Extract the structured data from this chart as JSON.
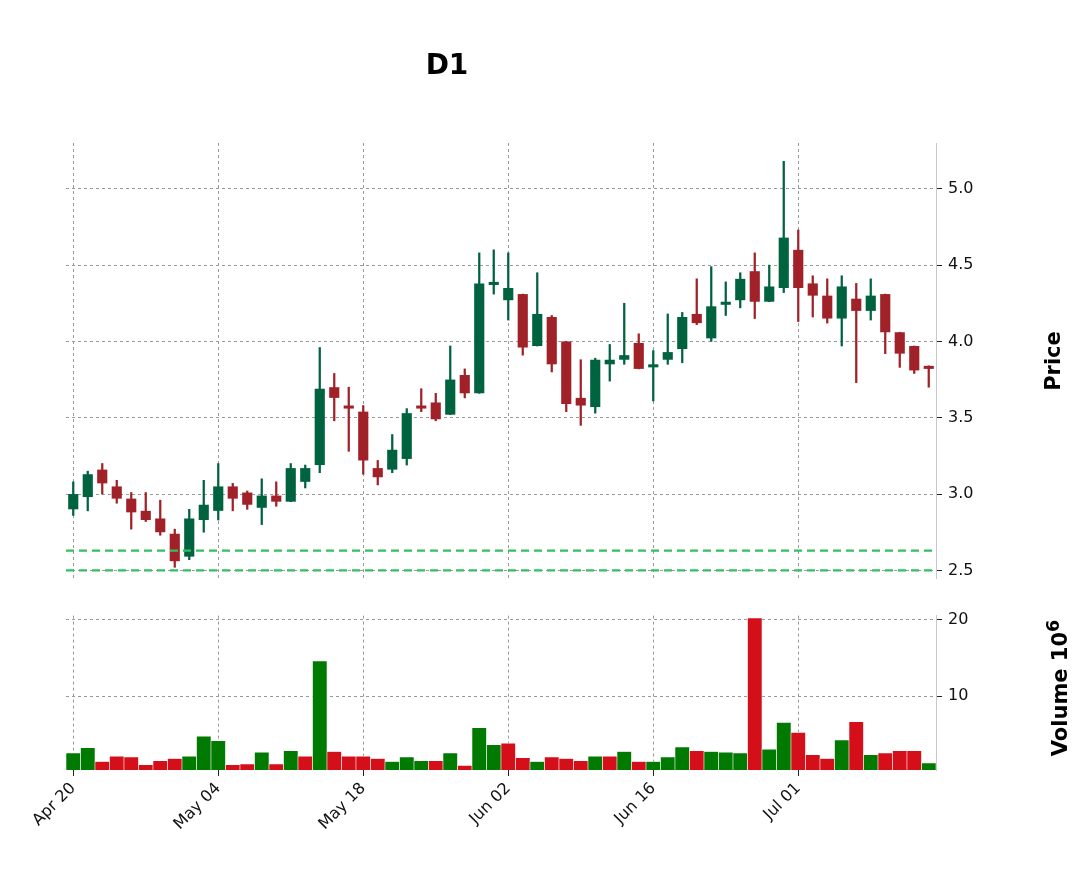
{
  "chart_data": [
    {
      "type": "candlestick",
      "title": "D1",
      "ylabel": "Price",
      "categories": [
        null,
        null,
        null,
        null,
        null,
        null,
        null,
        null,
        null,
        null,
        null,
        null,
        null,
        null,
        null,
        null,
        null,
        null,
        null,
        null,
        null,
        null,
        null,
        null,
        null,
        null,
        null,
        null,
        null,
        null,
        null,
        null,
        null,
        null,
        null,
        null,
        null,
        null,
        null,
        null,
        null,
        null,
        null,
        null,
        null,
        null,
        null,
        null,
        null,
        null,
        null,
        null,
        null,
        null,
        null,
        null,
        null,
        null,
        null,
        null
      ],
      "ohlc": [
        [
          2.9,
          3.08,
          2.86,
          3.0
        ],
        [
          2.98,
          3.15,
          2.89,
          3.13
        ],
        [
          3.16,
          3.2,
          3.0,
          3.07
        ],
        [
          3.05,
          3.09,
          2.94,
          2.97
        ],
        [
          2.97,
          3.01,
          2.77,
          2.88
        ],
        [
          2.89,
          3.01,
          2.82,
          2.83
        ],
        [
          2.84,
          2.96,
          2.73,
          2.75
        ],
        [
          2.74,
          2.77,
          2.52,
          2.56
        ],
        [
          2.59,
          2.9,
          2.57,
          2.84
        ],
        [
          2.83,
          3.09,
          2.75,
          2.93
        ],
        [
          2.89,
          3.2,
          2.83,
          3.05
        ],
        [
          3.05,
          3.07,
          2.89,
          2.97
        ],
        [
          3.01,
          3.02,
          2.9,
          2.93
        ],
        [
          2.91,
          3.1,
          2.8,
          2.99
        ],
        [
          2.99,
          3.08,
          2.92,
          2.95
        ],
        [
          2.95,
          3.2,
          2.95,
          3.17
        ],
        [
          3.08,
          3.19,
          3.04,
          3.17
        ],
        [
          3.19,
          3.96,
          3.14,
          3.69
        ],
        [
          3.7,
          3.79,
          3.48,
          3.63
        ],
        [
          3.58,
          3.7,
          3.28,
          3.56
        ],
        [
          3.54,
          3.58,
          3.13,
          3.22
        ],
        [
          3.17,
          3.22,
          3.06,
          3.11
        ],
        [
          3.16,
          3.39,
          3.14,
          3.29
        ],
        [
          3.23,
          3.56,
          3.19,
          3.53
        ],
        [
          3.58,
          3.69,
          3.54,
          3.56
        ],
        [
          3.6,
          3.66,
          3.48,
          3.49
        ],
        [
          3.52,
          3.97,
          3.52,
          3.75
        ],
        [
          3.78,
          3.82,
          3.63,
          3.66
        ],
        [
          3.66,
          4.58,
          3.66,
          4.38
        ],
        [
          4.37,
          4.6,
          4.31,
          4.39
        ],
        [
          4.27,
          4.58,
          4.14,
          4.35
        ],
        [
          4.31,
          4.31,
          3.91,
          3.96
        ],
        [
          3.97,
          4.45,
          3.97,
          4.18
        ],
        [
          4.16,
          4.17,
          3.8,
          3.85
        ],
        [
          4.0,
          4.0,
          3.54,
          3.59
        ],
        [
          3.63,
          3.88,
          3.45,
          3.58
        ],
        [
          3.57,
          3.89,
          3.53,
          3.88
        ],
        [
          3.85,
          3.98,
          3.74,
          3.88
        ],
        [
          3.88,
          4.25,
          3.85,
          3.91
        ],
        [
          3.99,
          4.05,
          3.82,
          3.82
        ],
        [
          3.83,
          3.94,
          3.61,
          3.85
        ],
        [
          3.88,
          4.18,
          3.85,
          3.93
        ],
        [
          3.95,
          4.19,
          3.86,
          4.16
        ],
        [
          4.18,
          4.41,
          4.11,
          4.12
        ],
        [
          4.02,
          4.49,
          4.0,
          4.23
        ],
        [
          4.24,
          4.39,
          4.17,
          4.26
        ],
        [
          4.27,
          4.45,
          4.22,
          4.41
        ],
        [
          4.46,
          4.58,
          4.15,
          4.26
        ],
        [
          4.26,
          4.5,
          4.26,
          4.36
        ],
        [
          4.35,
          5.18,
          4.32,
          4.68
        ],
        [
          4.6,
          4.73,
          4.13,
          4.35
        ],
        [
          4.38,
          4.43,
          4.16,
          4.3
        ],
        [
          4.3,
          4.41,
          4.12,
          4.15
        ],
        [
          4.15,
          4.43,
          3.97,
          4.36
        ],
        [
          4.28,
          4.38,
          3.73,
          4.2
        ],
        [
          4.2,
          4.41,
          4.14,
          4.3
        ],
        [
          4.31,
          4.31,
          3.92,
          4.06
        ],
        [
          4.06,
          4.06,
          3.83,
          3.92
        ],
        [
          3.97,
          3.97,
          3.79,
          3.81
        ],
        [
          3.84,
          3.84,
          3.7,
          3.82
        ]
      ],
      "colors": [
        "#006340",
        "#006340",
        "#a02128",
        "#a02128",
        "#a02128",
        "#a02128",
        "#a02128",
        "#a02128",
        "#006340",
        "#006340",
        "#006340",
        "#a02128",
        "#a02128",
        "#006340",
        "#a02128",
        "#006340",
        "#006340",
        "#006340",
        "#a02128",
        "#a02128",
        "#a02128",
        "#a02128",
        "#006340",
        "#006340",
        "#a02128",
        "#a02128",
        "#006340",
        "#a02128",
        "#006340",
        "#006340",
        "#006340",
        "#a02128",
        "#006340",
        "#a02128",
        "#a02128",
        "#a02128",
        "#006340",
        "#006340",
        "#006340",
        "#a02128",
        "#006340",
        "#006340",
        "#006340",
        "#a02128",
        "#006340",
        "#006340",
        "#006340",
        "#a02128",
        "#006340",
        "#006340",
        "#a02128",
        "#a02128",
        "#a02128",
        "#006340",
        "#a02128",
        "#006340",
        "#a02128",
        "#a02128",
        "#a02128",
        "#a02128"
      ],
      "ylim": [
        2.45,
        5.3
      ],
      "yticks": [
        {
          "value": 2.5,
          "label": "2.5"
        },
        {
          "value": 3,
          "label": "3.0"
        },
        {
          "value": 3.5,
          "label": "3.5"
        },
        {
          "value": 4,
          "label": "4.0"
        },
        {
          "value": 4.5,
          "label": "4.5"
        },
        {
          "value": 5,
          "label": "5.0"
        }
      ],
      "ref_lines": [
        {
          "axis": "y",
          "value": 2.63,
          "color": "#33c060",
          "line_style": "dashed"
        },
        {
          "axis": "y",
          "value": 2.5,
          "color": "#33c060",
          "line_style": "dashed"
        }
      ],
      "grid": true,
      "tick_labels": "y"
    },
    {
      "type": "bar",
      "ylabel": "Volume  10$^{6}$",
      "categories": [
        "Apr 20",
        null,
        null,
        null,
        null,
        null,
        null,
        null,
        null,
        null,
        "May 04",
        null,
        null,
        null,
        null,
        null,
        null,
        null,
        null,
        null,
        "May 18",
        null,
        null,
        null,
        null,
        null,
        null,
        null,
        null,
        null,
        "Jun 02",
        null,
        null,
        null,
        null,
        null,
        null,
        null,
        null,
        null,
        "Jun 16",
        null,
        null,
        null,
        null,
        null,
        null,
        null,
        null,
        null,
        "Jul 01",
        null,
        null,
        null,
        null,
        null,
        null,
        null,
        null,
        null
      ],
      "values": [
        2.6,
        3.3,
        1.5,
        2.2,
        2.1,
        1.1,
        1.6,
        1.9,
        2.2,
        4.8,
        4.2,
        1.1,
        1.2,
        2.7,
        1.2,
        2.9,
        2.2,
        14.6,
        2.8,
        2.2,
        2.2,
        1.9,
        1.5,
        2.1,
        1.6,
        1.6,
        2.6,
        1.0,
        5.9,
        3.7,
        3.9,
        2.0,
        1.5,
        2.1,
        1.9,
        1.6,
        2.2,
        2.2,
        2.8,
        1.5,
        1.5,
        2.1,
        3.4,
        2.9,
        2.8,
        2.7,
        2.6,
        20.2,
        3.1,
        6.6,
        5.3,
        2.4,
        1.9,
        4.3,
        6.7,
        2.4,
        2.6,
        2.9,
        2.9,
        1.3
      ],
      "colors": [
        "#007a00",
        "#007a00",
        "#d40f1a",
        "#d40f1a",
        "#d40f1a",
        "#d40f1a",
        "#d40f1a",
        "#d40f1a",
        "#007a00",
        "#007a00",
        "#007a00",
        "#d40f1a",
        "#d40f1a",
        "#007a00",
        "#d40f1a",
        "#007a00",
        "#d40f1a",
        "#007a00",
        "#d40f1a",
        "#d40f1a",
        "#d40f1a",
        "#d40f1a",
        "#007a00",
        "#007a00",
        "#007a00",
        "#d40f1a",
        "#007a00",
        "#d40f1a",
        "#007a00",
        "#007a00",
        "#d40f1a",
        "#d40f1a",
        "#007a00",
        "#d40f1a",
        "#d40f1a",
        "#d40f1a",
        "#007a00",
        "#d40f1a",
        "#007a00",
        "#d40f1a",
        "#007a00",
        "#007a00",
        "#007a00",
        "#d40f1a",
        "#007a00",
        "#007a00",
        "#007a00",
        "#d40f1a",
        "#007a00",
        "#007a00",
        "#d40f1a",
        "#d40f1a",
        "#d40f1a",
        "#007a00",
        "#d40f1a",
        "#007a00",
        "#d40f1a",
        "#d40f1a",
        "#d40f1a",
        "#007a00"
      ],
      "ylim": [
        0.4,
        20.5
      ],
      "yticks": [
        10,
        20
      ],
      "grid": true
    }
  ]
}
